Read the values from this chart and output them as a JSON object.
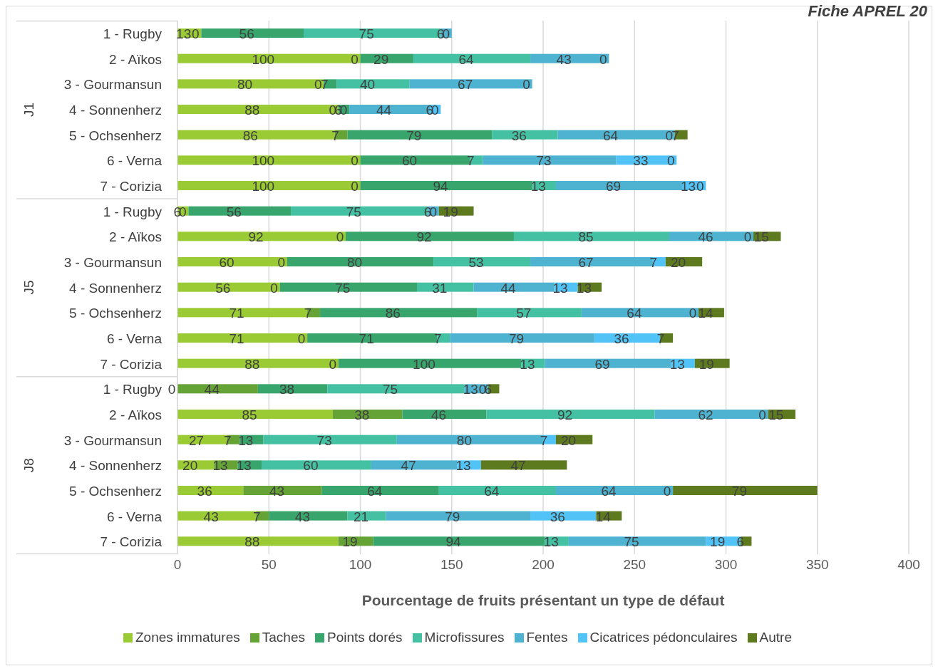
{
  "chart_data": {
    "type": "bar",
    "orientation": "horizontal",
    "stacked": true,
    "title": "Fiche APREL 20",
    "xlabel": "Pourcentage de fruits présentant un type de défaut",
    "annotations": [
      "J1",
      "J5",
      "J8"
    ],
    "categories": [
      "1 - Rugby",
      "2 - Aïkos",
      "3 - Gourmansun",
      "4 - Sonnenherz",
      "5 - Ochsenherz",
      "6 - Verna",
      "7 - Corizia",
      "1 - Rugby",
      "2 - Aïkos",
      "3 - Gourmansun",
      "4 - Sonnenherz",
      "5 - Ochsenherz",
      "6 - Verna",
      "7 - Corizia",
      "1 - Rugby",
      "2 - Aïkos",
      "3 - Gourmansun",
      "4 - Sonnenherz",
      "5 - Ochsenherz",
      "6 - Verna",
      "7 - Corizia"
    ],
    "series": [
      {
        "name": "Zones immatures",
        "color": "#9acb34",
        "values": [
          13,
          100,
          80,
          88,
          86,
          100,
          100,
          6,
          92,
          60,
          56,
          71,
          71,
          88,
          0,
          85,
          27,
          20,
          36,
          43,
          88
        ]
      },
      {
        "name": "Taches",
        "color": "#66a336",
        "values": [
          0,
          0,
          0,
          0,
          7,
          0,
          0,
          0,
          0,
          0,
          0,
          7,
          0,
          0,
          44,
          38,
          7,
          13,
          43,
          7,
          19
        ]
      },
      {
        "name": "Points dorés",
        "color": "#38a66c",
        "values": [
          56,
          29,
          7,
          6,
          79,
          60,
          94,
          56,
          92,
          80,
          75,
          86,
          71,
          100,
          38,
          46,
          13,
          13,
          64,
          43,
          94
        ]
      },
      {
        "name": "Microfissures",
        "color": "#44c1a3",
        "values": [
          75,
          64,
          40,
          0,
          36,
          7,
          13,
          75,
          85,
          53,
          31,
          57,
          7,
          13,
          75,
          92,
          73,
          60,
          64,
          21,
          13
        ]
      },
      {
        "name": "Fentes",
        "color": "#4eb2d1",
        "values": [
          6,
          43,
          67,
          44,
          64,
          73,
          69,
          6,
          46,
          67,
          44,
          64,
          79,
          69,
          13,
          62,
          80,
          47,
          64,
          79,
          75
        ]
      },
      {
        "name": "Cicatrices pédonculaires",
        "color": "#52c3f7",
        "values": [
          0,
          0,
          0,
          6,
          0,
          33,
          13,
          0,
          0,
          7,
          13,
          0,
          36,
          13,
          0,
          0,
          7,
          13,
          0,
          36,
          19
        ]
      },
      {
        "name": "Autre",
        "color": "#5e7a1f",
        "values": [
          null,
          null,
          null,
          0,
          7,
          0,
          0,
          19,
          15,
          20,
          13,
          14,
          7,
          19,
          6,
          15,
          20,
          47,
          79,
          14,
          6
        ]
      }
    ],
    "xlim": [
      0,
      400
    ],
    "xticks": [
      0,
      50,
      100,
      150,
      200,
      250,
      300,
      350,
      400
    ],
    "grid": "x",
    "legend": "bottom",
    "data_labels": true
  }
}
